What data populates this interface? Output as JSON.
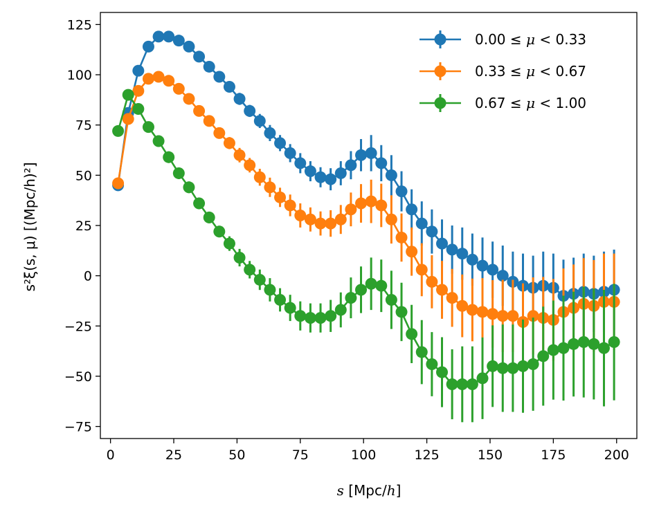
{
  "chart_data": {
    "type": "line",
    "title": "",
    "xlabel": {
      "var": "s",
      "unit": " [Mpc/",
      "unit_var": "h",
      "close": "]"
    },
    "ylabel": {
      "text": "s²ξ(s, μ) [(Mpc/h)²]"
    },
    "xlim": [
      -4,
      208
    ],
    "ylim": [
      -81,
      131
    ],
    "xticks": [
      0,
      25,
      50,
      75,
      100,
      125,
      150,
      175,
      200
    ],
    "xtick_labels": [
      "0",
      "25",
      "50",
      "75",
      "100",
      "125",
      "150",
      "175",
      "200"
    ],
    "yticks": [
      -75,
      -50,
      -25,
      0,
      25,
      50,
      75,
      100,
      125
    ],
    "ytick_labels": [
      "−75",
      "−50",
      "−25",
      "0",
      "25",
      "50",
      "75",
      "100",
      "125"
    ],
    "grid": false,
    "legend_position": "top-right",
    "x": [
      3,
      7,
      11,
      15,
      19,
      23,
      27,
      31,
      35,
      39,
      43,
      47,
      51,
      55,
      59,
      63,
      67,
      71,
      75,
      79,
      83,
      87,
      91,
      95,
      99,
      103,
      107,
      111,
      115,
      119,
      123,
      127,
      131,
      135,
      139,
      143,
      147,
      151,
      155,
      159,
      163,
      167,
      171,
      175,
      179,
      183,
      187,
      191,
      195,
      199
    ],
    "series": [
      {
        "name": "0.00 ≤ μ < 0.33",
        "label_parts": [
          "0.00",
          "≤",
          "μ",
          "<",
          "0.33"
        ],
        "color": "#1f77b4",
        "values": [
          45,
          81,
          102,
          114,
          119,
          119,
          117,
          114,
          109,
          104,
          99,
          94,
          88,
          82,
          77,
          71,
          66,
          61,
          56,
          52,
          49,
          48,
          51,
          55,
          60,
          61,
          56,
          50,
          42,
          33,
          26,
          22,
          16,
          13,
          11,
          8,
          5,
          3,
          0,
          -3,
          -5,
          -6,
          -5,
          -6,
          -10,
          -9,
          -8,
          -9,
          -8,
          -7
        ],
        "errors": [
          1,
          1,
          1.5,
          1.5,
          2,
          2,
          2,
          2,
          2,
          2,
          2,
          2.5,
          3,
          3,
          3.5,
          4,
          4,
          4.5,
          5,
          5,
          5,
          5.5,
          6,
          7,
          8,
          9,
          9,
          10,
          10,
          10,
          11,
          11,
          12,
          12,
          13,
          13,
          14,
          14,
          15,
          15,
          16,
          16,
          17,
          17,
          18,
          18,
          19,
          19,
          20,
          20
        ]
      },
      {
        "name": "0.33 ≤ μ < 0.67",
        "label_parts": [
          "0.33",
          "≤",
          "μ",
          "<",
          "0.67"
        ],
        "color": "#ff7f0e",
        "values": [
          46,
          78,
          92,
          98,
          99,
          97,
          93,
          88,
          82,
          77,
          71,
          66,
          60,
          55,
          49,
          44,
          39,
          35,
          30,
          28,
          26,
          26,
          28,
          33,
          36,
          37,
          35,
          28,
          19,
          12,
          3,
          -3,
          -7,
          -11,
          -15,
          -17,
          -18,
          -19,
          -20,
          -20,
          -23,
          -20,
          -21,
          -22,
          -18,
          -16,
          -14,
          -15,
          -13,
          -13
        ]
      },
      {
        "name": "0.67 ≤ μ < 1.00",
        "label_parts": [
          "0.67",
          "≤",
          "μ",
          "<",
          "1.00"
        ],
        "color": "#2ca02c",
        "values": [
          72,
          90,
          83,
          74,
          67,
          59,
          51,
          44,
          36,
          29,
          22,
          16,
          9,
          3,
          -2,
          -7,
          -12,
          -16,
          -20,
          -21,
          -21,
          -20,
          -17,
          -11,
          -7,
          -4,
          -5,
          -12,
          -18,
          -29,
          -38,
          -44,
          -48,
          -54,
          -54,
          -54,
          -51,
          -45,
          -46,
          -46,
          -45,
          -44,
          -40,
          -37,
          -36,
          -34,
          -33,
          -34,
          -36,
          -33
        ]
      }
    ]
  }
}
